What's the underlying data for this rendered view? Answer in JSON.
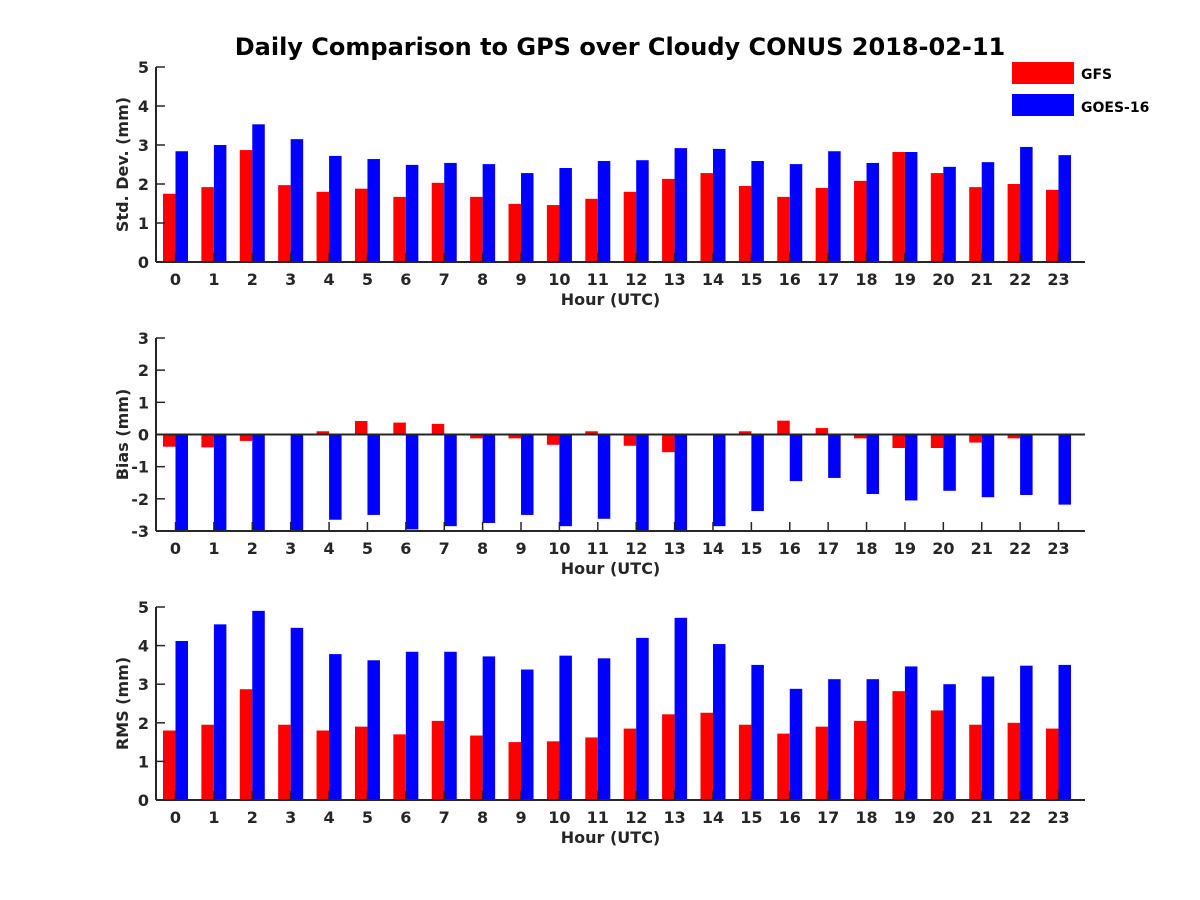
{
  "title": "Daily Comparison to GPS over Cloudy CONUS 2018-02-11",
  "legend": {
    "position": "top-right",
    "entries": [
      {
        "name": "GFS",
        "color": "#ff0000"
      },
      {
        "name": "GOES-16",
        "color": "#0000ff"
      }
    ]
  },
  "chart_data": [
    {
      "type": "bar",
      "ylabel": "Std. Dev. (mm)",
      "xlabel": "Hour (UTC)",
      "ylim": [
        0,
        5
      ],
      "yticks": [
        0,
        1,
        2,
        3,
        4,
        5
      ],
      "categories": [
        "0",
        "1",
        "2",
        "3",
        "4",
        "5",
        "6",
        "7",
        "8",
        "9",
        "10",
        "11",
        "12",
        "13",
        "14",
        "15",
        "16",
        "17",
        "18",
        "19",
        "20",
        "21",
        "22",
        "23"
      ],
      "series": [
        {
          "name": "GFS",
          "color": "#ff0000",
          "values": [
            1.75,
            1.92,
            2.87,
            1.97,
            1.8,
            1.88,
            1.67,
            2.03,
            1.67,
            1.49,
            1.46,
            1.62,
            1.8,
            2.13,
            2.28,
            1.95,
            1.67,
            1.9,
            2.08,
            2.82,
            2.28,
            1.92,
            2.0,
            1.85
          ]
        },
        {
          "name": "GOES-16",
          "color": "#0000ff",
          "values": [
            2.84,
            3.0,
            3.53,
            3.15,
            2.72,
            2.64,
            2.49,
            2.54,
            2.51,
            2.28,
            2.41,
            2.59,
            2.61,
            2.92,
            2.9,
            2.59,
            2.51,
            2.84,
            2.54,
            2.82,
            2.44,
            2.56,
            2.95,
            2.74
          ]
        }
      ]
    },
    {
      "type": "bar",
      "ylabel": "Bias (mm)",
      "xlabel": "Hour (UTC)",
      "ylim": [
        -3,
        3
      ],
      "yticks": [
        -3,
        -2,
        -1,
        0,
        1,
        2,
        3
      ],
      "categories": [
        "0",
        "1",
        "2",
        "3",
        "4",
        "5",
        "6",
        "7",
        "8",
        "9",
        "10",
        "11",
        "12",
        "13",
        "14",
        "15",
        "16",
        "17",
        "18",
        "19",
        "20",
        "21",
        "22",
        "23"
      ],
      "series": [
        {
          "name": "GFS",
          "color": "#ff0000",
          "values": [
            -0.38,
            -0.4,
            -0.2,
            -0.03,
            0.1,
            0.42,
            0.37,
            0.33,
            -0.12,
            -0.12,
            -0.32,
            0.1,
            -0.35,
            -0.55,
            0.03,
            0.1,
            0.43,
            0.2,
            -0.12,
            -0.42,
            -0.42,
            -0.25,
            -0.12,
            0.0
          ]
        },
        {
          "name": "GOES-16",
          "color": "#0000ff",
          "values": [
            -3.0,
            -3.0,
            -3.0,
            -3.0,
            -2.65,
            -2.5,
            -2.95,
            -2.85,
            -2.75,
            -2.5,
            -2.85,
            -2.62,
            -3.0,
            -3.0,
            -2.85,
            -2.38,
            -1.45,
            -1.35,
            -1.85,
            -2.05,
            -1.75,
            -1.95,
            -1.88,
            -2.18
          ]
        }
      ]
    },
    {
      "type": "bar",
      "ylabel": "RMS (mm)",
      "xlabel": "Hour (UTC)",
      "ylim": [
        0,
        5
      ],
      "yticks": [
        0,
        1,
        2,
        3,
        4,
        5
      ],
      "categories": [
        "0",
        "1",
        "2",
        "3",
        "4",
        "5",
        "6",
        "7",
        "8",
        "9",
        "10",
        "11",
        "12",
        "13",
        "14",
        "15",
        "16",
        "17",
        "18",
        "19",
        "20",
        "21",
        "22",
        "23"
      ],
      "series": [
        {
          "name": "GFS",
          "color": "#ff0000",
          "values": [
            1.8,
            1.95,
            2.87,
            1.95,
            1.8,
            1.9,
            1.7,
            2.05,
            1.67,
            1.5,
            1.52,
            1.62,
            1.85,
            2.22,
            2.26,
            1.95,
            1.72,
            1.9,
            2.05,
            2.82,
            2.32,
            1.95,
            2.0,
            1.85
          ]
        },
        {
          "name": "GOES-16",
          "color": "#0000ff",
          "values": [
            4.12,
            4.55,
            4.9,
            4.46,
            3.78,
            3.62,
            3.84,
            3.84,
            3.72,
            3.38,
            3.74,
            3.67,
            4.2,
            4.72,
            4.04,
            3.5,
            2.88,
            3.13,
            3.13,
            3.46,
            3.0,
            3.2,
            3.48,
            3.5
          ]
        }
      ]
    }
  ]
}
